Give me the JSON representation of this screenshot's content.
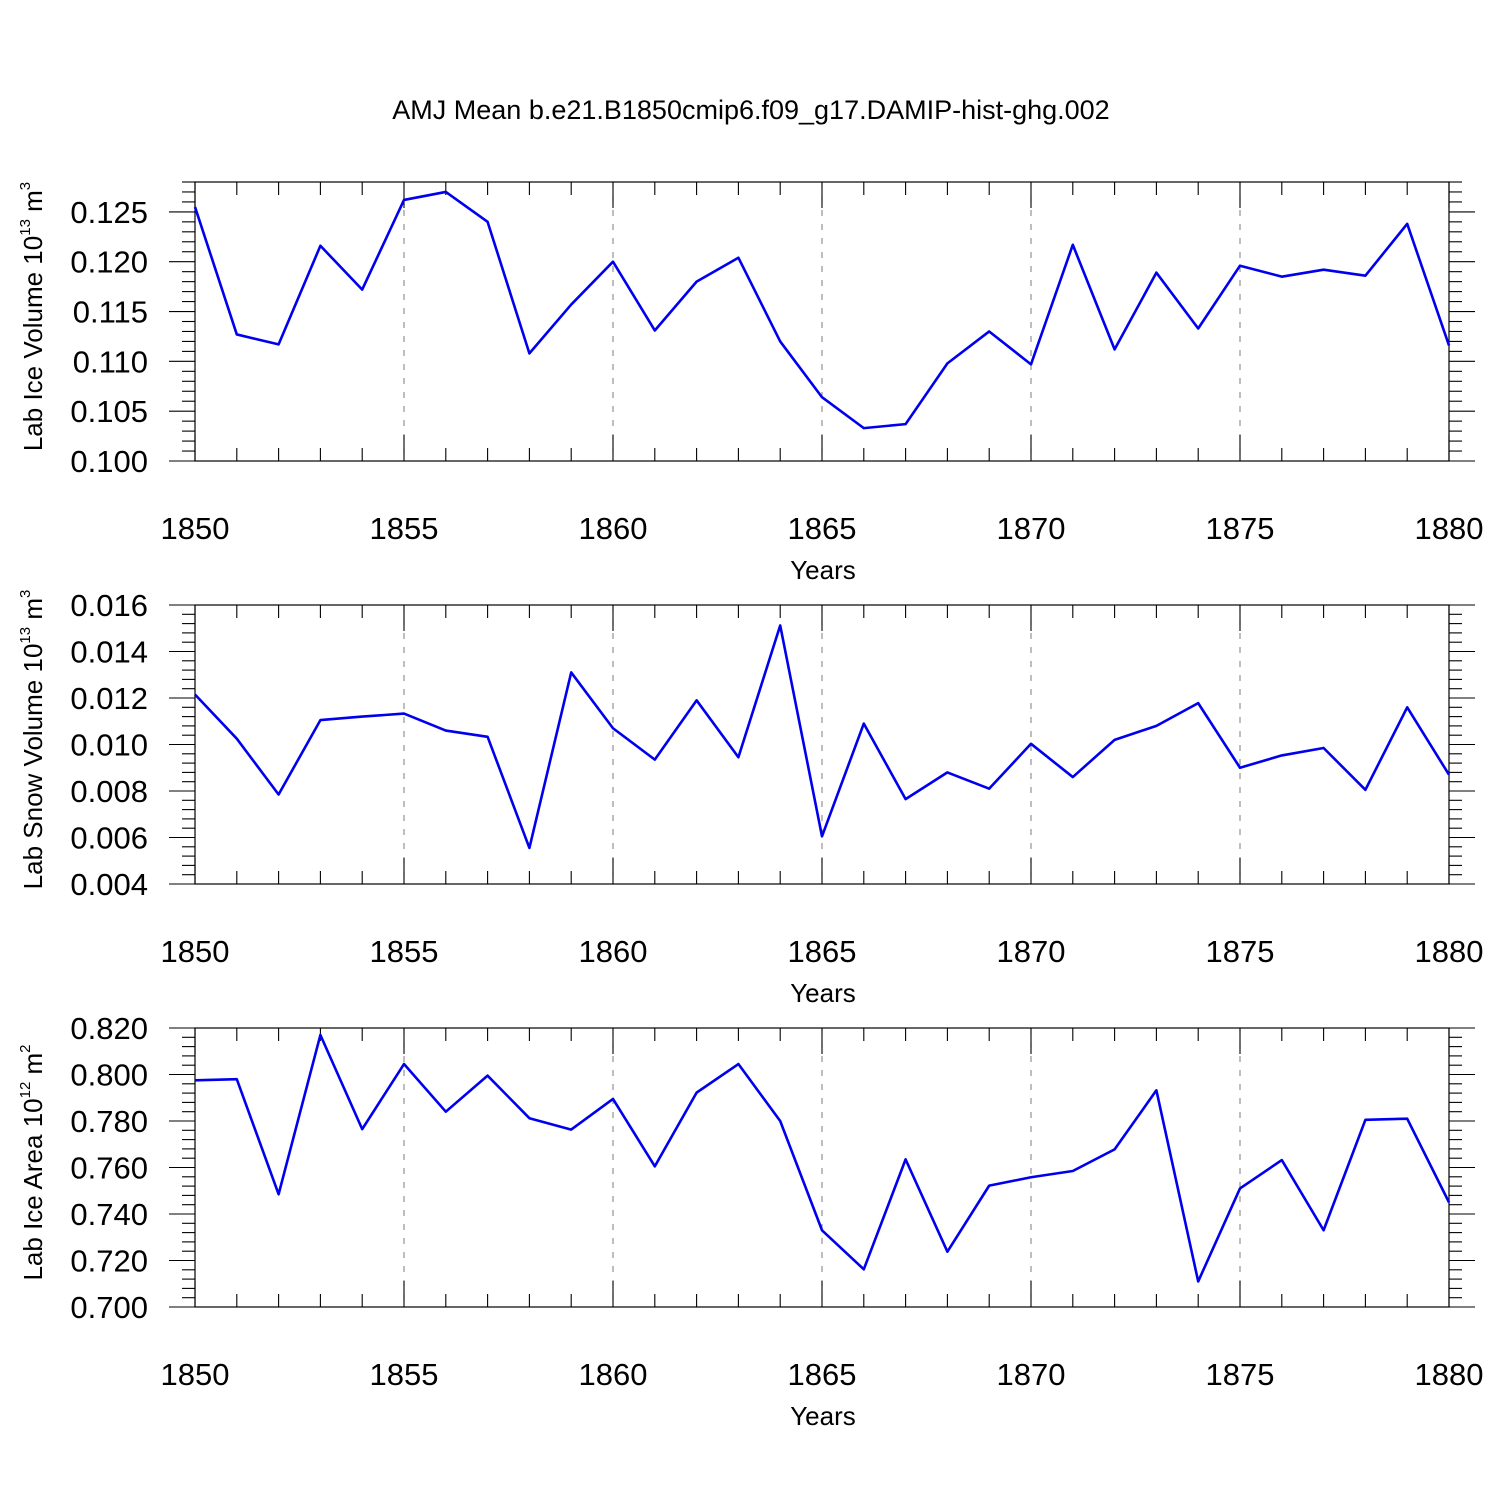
{
  "title": "AMJ Mean b.e21.B1850cmip6.f09_g17.DAMIP-hist-ghg.002",
  "colors": {
    "line": "#0000ee",
    "grid": "#888888",
    "axis": "#000000"
  },
  "chart_data": [
    {
      "type": "line",
      "xlabel": "Years",
      "ylabel_main": "Lab Ice Volume 10",
      "ylabel_exp": "13",
      "ylabel_unit": " m",
      "ylabel_unit_exp": "3",
      "xlim": [
        1850,
        1880
      ],
      "ylim": [
        0.1,
        0.128
      ],
      "x_ticks": [
        "1850",
        "1855",
        "1860",
        "1865",
        "1870",
        "1875",
        "1880"
      ],
      "y_ticks": [
        "0.100",
        "0.105",
        "0.110",
        "0.115",
        "0.120",
        "0.125"
      ],
      "grid_x": [
        1855,
        1860,
        1865,
        1870,
        1875
      ],
      "x": [
        1850,
        1851,
        1852,
        1853,
        1854,
        1855,
        1856,
        1857,
        1858,
        1859,
        1860,
        1861,
        1862,
        1863,
        1864,
        1865,
        1866,
        1867,
        1868,
        1869,
        1870,
        1871,
        1872,
        1873,
        1874,
        1875,
        1876,
        1877,
        1878,
        1879,
        1880
      ],
      "y": [
        0.1255,
        0.1127,
        0.1117,
        0.1216,
        0.1172,
        0.1262,
        0.127,
        0.124,
        0.1108,
        0.1157,
        0.12,
        0.1131,
        0.118,
        0.1204,
        0.112,
        0.1064,
        0.1033,
        0.1037,
        0.1098,
        0.113,
        0.1097,
        0.1217,
        0.1112,
        0.1189,
        0.1133,
        0.1196,
        0.1185,
        0.1192,
        0.1186,
        0.1238,
        0.1116
      ]
    },
    {
      "type": "line",
      "xlabel": "Years",
      "ylabel_main": "Lab Snow Volume 10",
      "ylabel_exp": "13",
      "ylabel_unit": " m",
      "ylabel_unit_exp": "3",
      "xlim": [
        1850,
        1880
      ],
      "ylim": [
        0.004,
        0.016
      ],
      "x_ticks": [
        "1850",
        "1855",
        "1860",
        "1865",
        "1870",
        "1875",
        "1880"
      ],
      "y_ticks": [
        "0.004",
        "0.006",
        "0.008",
        "0.010",
        "0.012",
        "0.014",
        "0.016"
      ],
      "grid_x": [
        1855,
        1860,
        1865,
        1870,
        1875
      ],
      "x": [
        1850,
        1851,
        1852,
        1853,
        1854,
        1855,
        1856,
        1857,
        1858,
        1859,
        1860,
        1861,
        1862,
        1863,
        1864,
        1865,
        1866,
        1867,
        1868,
        1869,
        1870,
        1871,
        1872,
        1873,
        1874,
        1875,
        1876,
        1877,
        1878,
        1879,
        1880
      ],
      "y": [
        0.01215,
        0.01025,
        0.00785,
        0.01105,
        0.0112,
        0.01133,
        0.0106,
        0.01033,
        0.00555,
        0.0131,
        0.0107,
        0.00935,
        0.0119,
        0.00945,
        0.01512,
        0.00605,
        0.0109,
        0.00765,
        0.0088,
        0.0081,
        0.01003,
        0.0086,
        0.0102,
        0.0108,
        0.01178,
        0.009,
        0.00953,
        0.00985,
        0.00805,
        0.0116,
        0.0087
      ]
    },
    {
      "type": "line",
      "xlabel": "Years",
      "ylabel_main": "Lab Ice Area 10",
      "ylabel_exp": "12",
      "ylabel_unit": " m",
      "ylabel_unit_exp": "2",
      "xlim": [
        1850,
        1880
      ],
      "ylim": [
        0.7,
        0.82
      ],
      "x_ticks": [
        "1850",
        "1855",
        "1860",
        "1865",
        "1870",
        "1875",
        "1880"
      ],
      "y_ticks": [
        "0.700",
        "0.720",
        "0.740",
        "0.760",
        "0.780",
        "0.800",
        "0.820"
      ],
      "grid_x": [
        1855,
        1860,
        1865,
        1870,
        1875
      ],
      "x": [
        1850,
        1851,
        1852,
        1853,
        1854,
        1855,
        1856,
        1857,
        1858,
        1859,
        1860,
        1861,
        1862,
        1863,
        1864,
        1865,
        1866,
        1867,
        1868,
        1869,
        1870,
        1871,
        1872,
        1873,
        1874,
        1875,
        1876,
        1877,
        1878,
        1879,
        1880
      ],
      "y": [
        0.7975,
        0.798,
        0.7485,
        0.817,
        0.7765,
        0.8045,
        0.784,
        0.7995,
        0.7812,
        0.7763,
        0.7895,
        0.7605,
        0.7922,
        0.8045,
        0.78,
        0.733,
        0.7162,
        0.7635,
        0.7238,
        0.7522,
        0.7558,
        0.7585,
        0.7678,
        0.7932,
        0.711,
        0.751,
        0.7632,
        0.733,
        0.7805,
        0.781,
        0.745
      ]
    }
  ]
}
